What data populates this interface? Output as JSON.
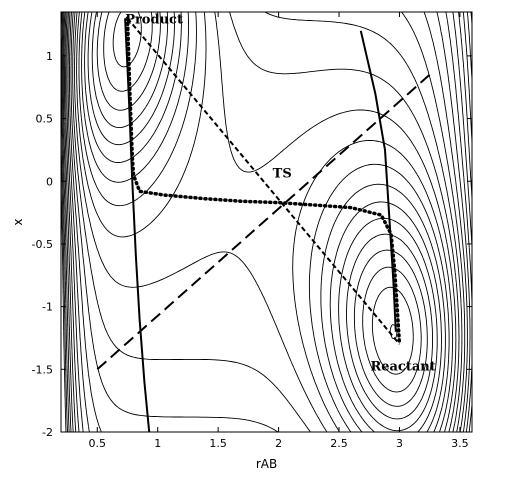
{
  "chart_data": {
    "type": "contour",
    "title": "",
    "xlabel": "rAB",
    "ylabel": "x",
    "xlim": [
      0.2,
      3.6
    ],
    "ylim": [
      -2.0,
      1.35
    ],
    "xticks": [
      0.5,
      1,
      1.5,
      2,
      2.5,
      3,
      3.5
    ],
    "xtick_labels": [
      "0.5",
      "1",
      "1.5",
      "2",
      "2.5",
      "3",
      "3.5"
    ],
    "yticks": [
      1,
      0.5,
      0,
      -0.5,
      -1,
      -1.5,
      -2
    ],
    "ytick_labels": [
      "1",
      "0.5",
      "0",
      "-0.5",
      "-1",
      "-1.5",
      "-2"
    ],
    "grid": false,
    "minima": {
      "product": {
        "x": 0.75,
        "y": 1.3
      },
      "reactant": {
        "x": 3.0,
        "y": -1.3
      }
    },
    "saddle": {
      "x": 2.0,
      "y": -0.15
    },
    "annotations": [
      {
        "name": "product",
        "text": "Product",
        "x": 0.97,
        "y": 1.3
      },
      {
        "name": "ts",
        "text": "TS",
        "x": 2.03,
        "y": 0.07
      },
      {
        "name": "reactant",
        "text": "Reactant",
        "x": 3.03,
        "y": -1.47
      }
    ],
    "series": [
      {
        "style": "dashed-short",
        "points": [
          [
            0.75,
            1.3
          ],
          [
            3.0,
            -1.3
          ]
        ]
      },
      {
        "style": "dashed-long",
        "points": [
          [
            0.5,
            -1.5
          ],
          [
            3.25,
            0.85
          ]
        ]
      },
      {
        "style": "dotted",
        "points": [
          [
            0.75,
            1.3
          ],
          [
            0.76,
            1.0
          ],
          [
            0.77,
            0.7
          ],
          [
            0.78,
            0.45
          ],
          [
            0.79,
            0.2
          ],
          [
            0.8,
            0.05
          ],
          [
            0.85,
            -0.08
          ],
          [
            1.05,
            -0.11
          ],
          [
            1.4,
            -0.14
          ],
          [
            1.7,
            -0.16
          ],
          [
            2.0,
            -0.17
          ],
          [
            2.3,
            -0.19
          ],
          [
            2.6,
            -0.21
          ],
          [
            2.85,
            -0.27
          ],
          [
            2.93,
            -0.42
          ],
          [
            2.96,
            -0.7
          ],
          [
            2.98,
            -1.0
          ],
          [
            3.0,
            -1.3
          ]
        ]
      },
      {
        "style": "solid",
        "points": [
          [
            0.73,
            1.3
          ],
          [
            0.76,
            0.7
          ],
          [
            0.79,
            0.0
          ],
          [
            0.82,
            -0.6
          ],
          [
            0.85,
            -1.1
          ],
          [
            0.89,
            -1.6
          ],
          [
            0.93,
            -2.0
          ]
        ]
      },
      {
        "style": "solid",
        "points": [
          [
            2.68,
            1.2
          ],
          [
            2.8,
            0.7
          ],
          [
            2.88,
            0.25
          ],
          [
            2.91,
            -0.2
          ],
          [
            2.95,
            -0.8
          ],
          [
            2.97,
            -1.2
          ]
        ]
      }
    ]
  }
}
